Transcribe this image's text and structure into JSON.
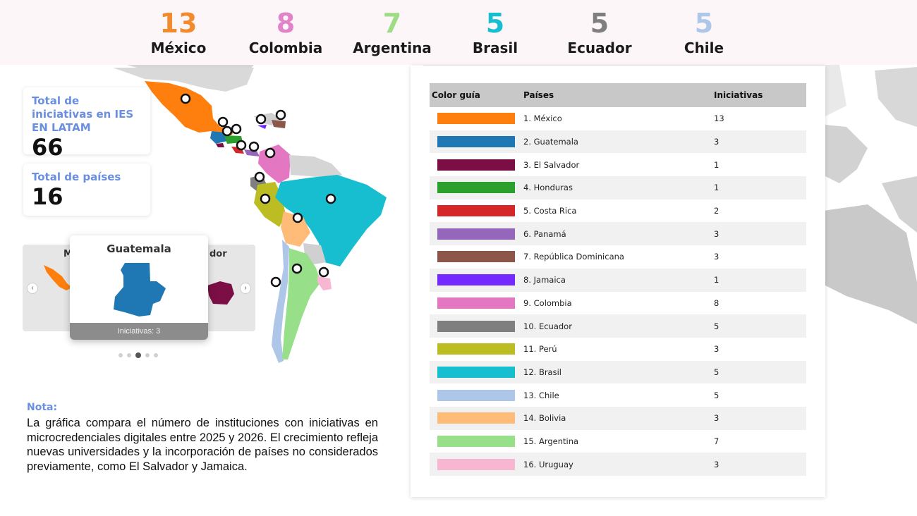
{
  "header_stats": [
    {
      "value": "13",
      "country": "México",
      "color": "#f28a2e"
    },
    {
      "value": "8",
      "country": "Colombia",
      "color": "#e083c8"
    },
    {
      "value": "7",
      "country": "Argentina",
      "color": "#9fdc86"
    },
    {
      "value": "5",
      "country": "Brasil",
      "color": "#17becf"
    },
    {
      "value": "5",
      "country": "Ecuador",
      "color": "#7f7f7f"
    },
    {
      "value": "5",
      "country": "Chile",
      "color": "#aec7e8"
    }
  ],
  "summary": {
    "total_label": "Total de iniciativas en IES EN LATAM",
    "total_value": "66",
    "countries_label": "Total de países",
    "countries_value": "16"
  },
  "carousel": {
    "current_title": "Guatemala",
    "current_footer": "Iniciativas: 3",
    "prev_partial_label": "M",
    "next_partial_label": "dor",
    "prev_icon": "chevron-left-icon",
    "next_icon": "chevron-right-icon",
    "dot_count": 5,
    "active_dot": 3
  },
  "note": {
    "title": "Nota:",
    "body": "La gráfica compara el número de instituciones con iniciativas en microcredenciales digitales entre 2025 y 2026. El crecimiento refleja nuevas universidades y la incorporación de países no considerados previamente, como El Salvador y Jamaica."
  },
  "table": {
    "headers": [
      "Color guía",
      "Países",
      "Iniciativas"
    ],
    "rows": [
      {
        "color": "#ff7f0e",
        "country": "1. México",
        "count": "13"
      },
      {
        "color": "#1f77b4",
        "country": "2. Guatemala",
        "count": "3"
      },
      {
        "color": "#7b0f45",
        "country": "3. El Salvador",
        "count": "1"
      },
      {
        "color": "#2ca02c",
        "country": "4. Honduras",
        "count": "1"
      },
      {
        "color": "#d62728",
        "country": "5. Costa Rica",
        "count": "2"
      },
      {
        "color": "#9467bd",
        "country": "6. Panamá",
        "count": "3"
      },
      {
        "color": "#8c564b",
        "country": "7. República Dominicana",
        "count": "3"
      },
      {
        "color": "#7329ff",
        "country": "8. Jamaica",
        "count": "1"
      },
      {
        "color": "#e377c2",
        "country": "9. Colombia",
        "count": "8"
      },
      {
        "color": "#7f7f7f",
        "country": "10. Ecuador",
        "count": "5"
      },
      {
        "color": "#bcbd22",
        "country": "11. Perú",
        "count": "3"
      },
      {
        "color": "#17becf",
        "country": "12. Brasil",
        "count": "5"
      },
      {
        "color": "#aec7e8",
        "country": "13. Chile",
        "count": "5"
      },
      {
        "color": "#ffbb78",
        "country": "14. Bolivia",
        "count": "3"
      },
      {
        "color": "#98df8a",
        "country": "15. Argentina",
        "count": "7"
      },
      {
        "color": "#f7b6d2",
        "country": "16. Uruguay",
        "count": "3"
      }
    ]
  }
}
